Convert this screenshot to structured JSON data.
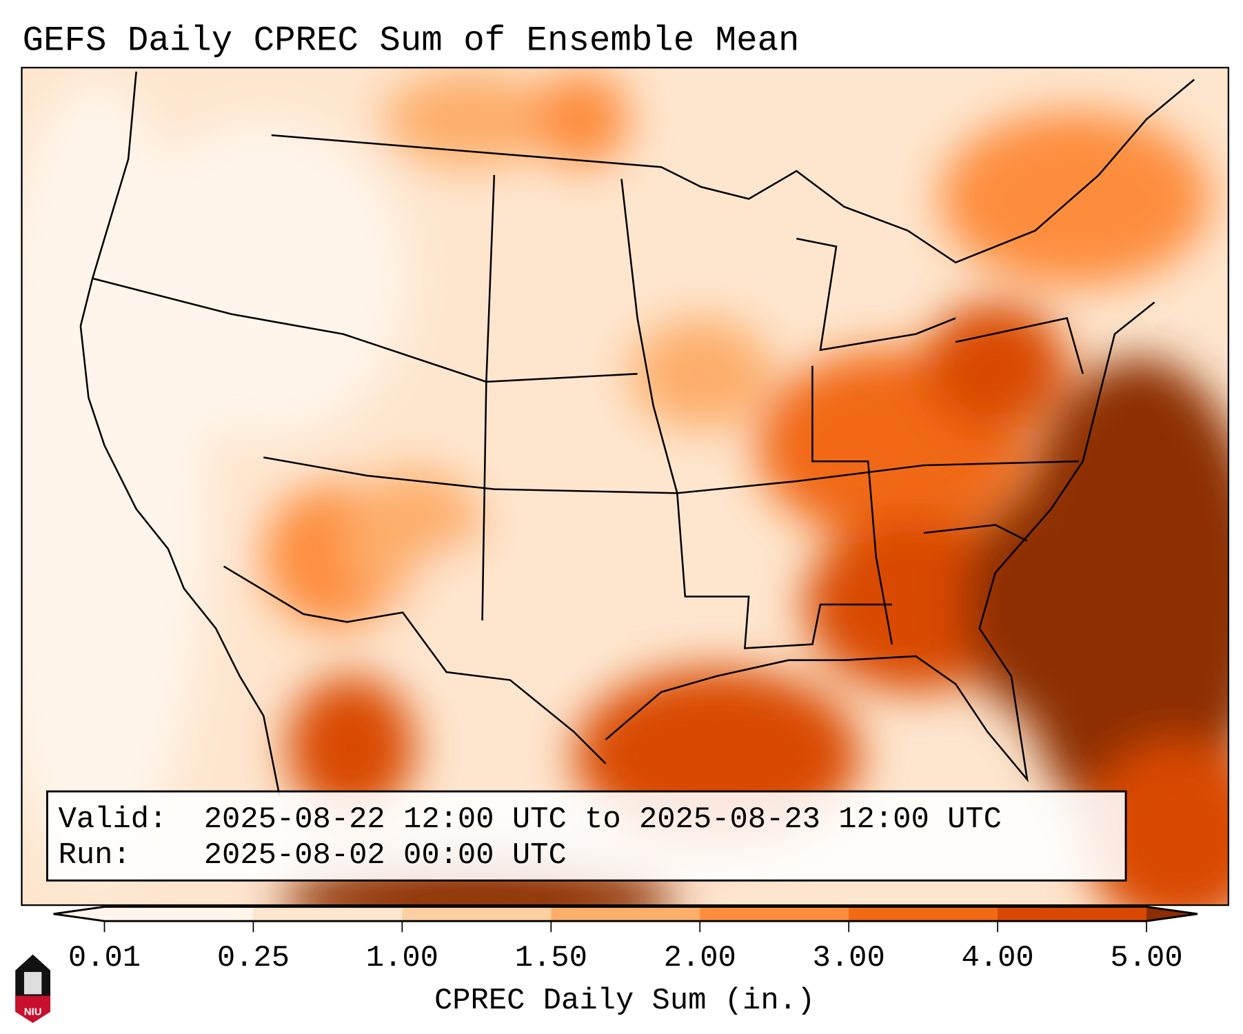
{
  "title": "GEFS Daily CPREC Sum of Ensemble Mean",
  "info_box": {
    "valid_label": "Valid:",
    "valid_value": "2025-08-22 12:00 UTC to 2025-08-23 12:00 UTC",
    "run_label": "Run:",
    "run_value": "2025-08-02 00:00 UTC"
  },
  "colorbar": {
    "label": "CPREC Daily Sum (in.)",
    "ticks": [
      "0.01",
      "0.25",
      "1.00",
      "1.50",
      "2.00",
      "3.00",
      "4.00",
      "5.00"
    ],
    "colors": [
      "#fff5eb",
      "#fee6ce",
      "#fdd0a2",
      "#fdae6b",
      "#fd8d3c",
      "#f16913",
      "#d94801",
      "#8c2d04"
    ]
  },
  "logo": {
    "text": "NIU"
  }
}
